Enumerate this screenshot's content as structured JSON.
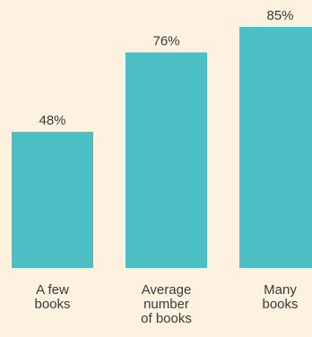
{
  "colors": {
    "background": "#fdf1e0",
    "bar": "#4bbfc4",
    "text": "#3a3a3a"
  },
  "chart_data": {
    "type": "bar",
    "categories": [
      [
        "A few",
        "books"
      ],
      [
        "Average",
        "number",
        "of books"
      ],
      [
        "Many",
        "books"
      ]
    ],
    "values": [
      48,
      76,
      85
    ],
    "value_labels": [
      "48%",
      "76%",
      "85%"
    ],
    "ylim": [
      0,
      85
    ],
    "grid": false,
    "legend": "none"
  }
}
